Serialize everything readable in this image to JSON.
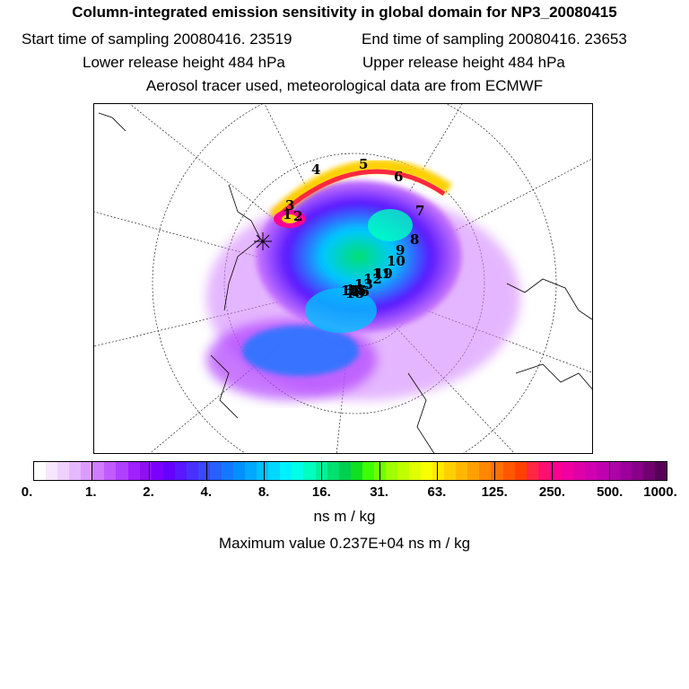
{
  "title": "Column-integrated emission sensitivity in global domain for NP3_20080415",
  "start_label": "Start time of sampling 20080416. 23519",
  "end_label": "End time of sampling 20080416. 23653",
  "lower_label": "Lower release height  484 hPa",
  "upper_label": "Upper release height  484 hPa",
  "tracer_label": "Aerosol tracer used, meteorological data are from ECMWF",
  "chart_data": {
    "type": "heatmap",
    "projection": "polar-stereographic",
    "colorbar": {
      "ticks": [
        "0.",
        "1.",
        "2.",
        "4.",
        "8.",
        "16.",
        "31.",
        "63.",
        "125.",
        "250.",
        "500.",
        "1000."
      ],
      "colors": [
        "#ffffff",
        "#f7e6ff",
        "#efd0ff",
        "#e6b8ff",
        "#dc9cff",
        "#cf7cff",
        "#c05cff",
        "#b040ff",
        "#a020ff",
        "#9010f0",
        "#7c00ff",
        "#6800ff",
        "#5a18ff",
        "#4a30ff",
        "#3a48ff",
        "#2860ff",
        "#1478ff",
        "#0090ff",
        "#00a8ff",
        "#00c0ff",
        "#00d8ff",
        "#00f0ff",
        "#00ffe8",
        "#00ffc0",
        "#00f098",
        "#00e070",
        "#00d050",
        "#10e020",
        "#40ff00",
        "#70ff00",
        "#a0ff00",
        "#c0ff00",
        "#e0ff00",
        "#f8ff00",
        "#ffe800",
        "#ffd000",
        "#ffb800",
        "#ffa000",
        "#ff8800",
        "#ff7000",
        "#ff5800",
        "#ff4000",
        "#ff2840",
        "#ff1070",
        "#ff0090",
        "#f000a0",
        "#e000a8",
        "#d000b0",
        "#c000b0",
        "#b000a8",
        "#9c009c",
        "#880088",
        "#700070",
        "#580058"
      ]
    },
    "markers": [
      "1",
      "2",
      "3",
      "4",
      "5",
      "6",
      "7",
      "8",
      "9",
      "10",
      "11",
      "12",
      "13",
      "14",
      "15",
      "16",
      "17",
      "18",
      "19"
    ],
    "units": "ns m / kg",
    "max_value_label": "Maximum value  0.237E+04 ns m / kg"
  }
}
